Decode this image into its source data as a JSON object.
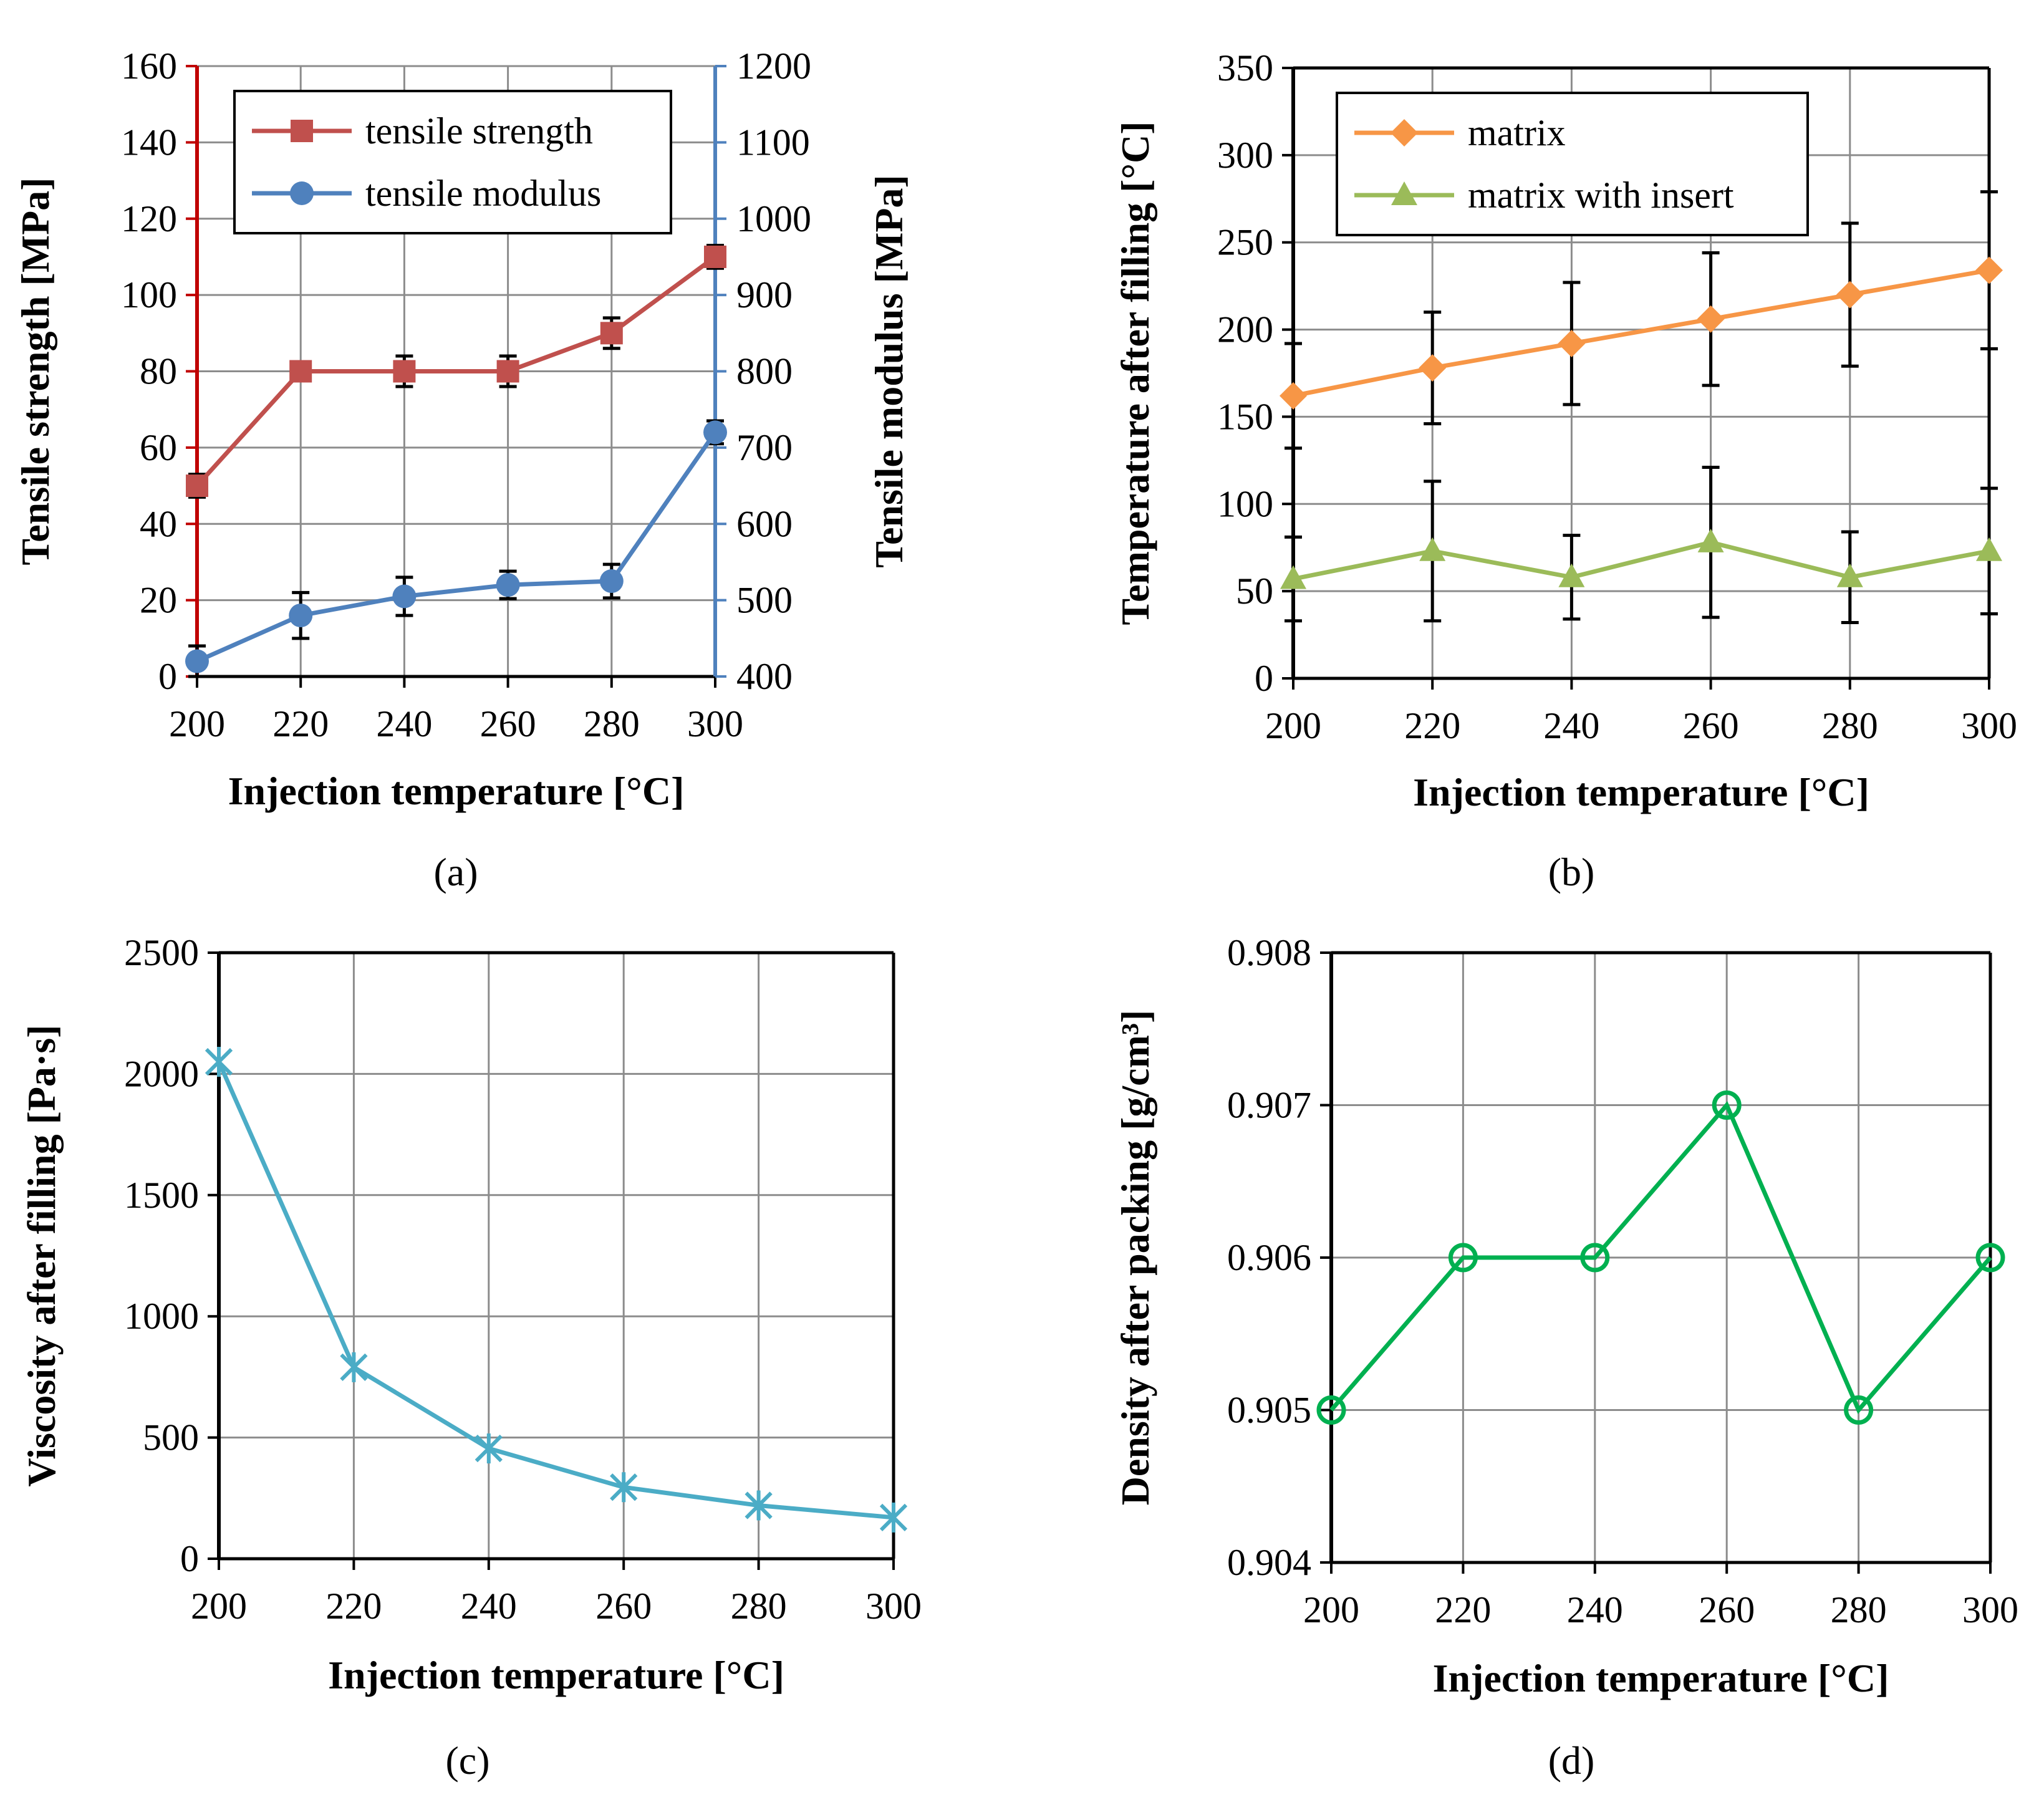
{
  "chart_data": [
    {
      "type": "line",
      "panel_label": "(a)",
      "xlabel": "Injection temperature [°C]",
      "x": [
        200,
        220,
        240,
        260,
        280,
        300
      ],
      "xlim": [
        200,
        300
      ],
      "ylabel": "Tensile strength [MPa]",
      "ylim": [
        0,
        160
      ],
      "yticks": [
        0,
        20,
        40,
        60,
        80,
        100,
        120,
        140,
        160
      ],
      "y2label": "Tensile modulus [MPa]",
      "y2lim": [
        400,
        1200
      ],
      "y2ticks": [
        400,
        500,
        600,
        700,
        800,
        900,
        1000,
        1100,
        1200
      ],
      "grid": true,
      "legend": "top-left",
      "series": [
        {
          "name": "tensile strength",
          "axis": "left",
          "color": "#c0504d",
          "marker": "square",
          "values": [
            50,
            80,
            80,
            80,
            90,
            110
          ],
          "errors": [
            3,
            2,
            4,
            4,
            4,
            3
          ]
        },
        {
          "name": "tensile modulus",
          "axis": "right",
          "color": "#4f81bd",
          "marker": "circle",
          "values": [
            420,
            480,
            505,
            520,
            525,
            720
          ],
          "errors": [
            20,
            30,
            25,
            18,
            22,
            15
          ]
        }
      ]
    },
    {
      "type": "line",
      "panel_label": "(b)",
      "xlabel": "Injection temperature [°C]",
      "x": [
        200,
        220,
        240,
        260,
        280,
        300
      ],
      "xlim": [
        200,
        300
      ],
      "ylabel": "Temperature after filling [°C]",
      "ylim": [
        0,
        350
      ],
      "yticks": [
        0,
        50,
        100,
        150,
        200,
        250,
        300,
        350
      ],
      "grid": true,
      "legend": "top-left",
      "series": [
        {
          "name": "matrix",
          "color": "#f79646",
          "marker": "diamond",
          "values": [
            162,
            178,
            192,
            206,
            220,
            234
          ],
          "errors": [
            30,
            32,
            35,
            38,
            41,
            45
          ]
        },
        {
          "name": "matrix with insert",
          "color": "#9bbb59",
          "marker": "triangle",
          "values": [
            57,
            73,
            58,
            78,
            58,
            73
          ],
          "errors": [
            24,
            40,
            24,
            43,
            26,
            36
          ]
        }
      ]
    },
    {
      "type": "line",
      "panel_label": "(c)",
      "xlabel": "Injection temperature [°C]",
      "x": [
        200,
        220,
        240,
        260,
        280,
        300
      ],
      "xlim": [
        200,
        300
      ],
      "ylabel": "Viscosity after filling [Pa·s]",
      "ylim": [
        0,
        2500
      ],
      "yticks": [
        0,
        500,
        1000,
        1500,
        2000,
        2500
      ],
      "grid": true,
      "series": [
        {
          "name": "",
          "color": "#4bacc6",
          "marker": "x",
          "values": [
            2050,
            790,
            455,
            295,
            220,
            170
          ]
        }
      ]
    },
    {
      "type": "line",
      "panel_label": "(d)",
      "xlabel": "Injection temperature [°C]",
      "x": [
        200,
        220,
        240,
        260,
        280,
        300
      ],
      "xlim": [
        200,
        300
      ],
      "ylabel": "Density after packing [g/cm³]",
      "ylim": [
        0.904,
        0.908
      ],
      "yticks": [
        "0.904",
        "0.905",
        "0.906",
        "0.907",
        "0.908"
      ],
      "grid": true,
      "series": [
        {
          "name": "",
          "color": "#00b050",
          "marker": "open-circle",
          "values": [
            0.905,
            0.906,
            0.906,
            0.907,
            0.905,
            0.906
          ]
        }
      ]
    }
  ]
}
